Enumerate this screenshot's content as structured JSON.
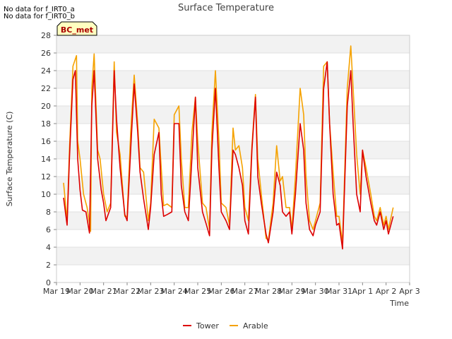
{
  "notes": [
    "No data for f_IRT0_a",
    "No data for f_IRT0_b"
  ],
  "badge": "BC_met",
  "chart_data": {
    "type": "line",
    "title": "Surface Temperature",
    "xlabel": "Time",
    "ylabel": "Surface Temperature (C)",
    "ylim": [
      0,
      28
    ],
    "yticks": [
      0,
      2,
      4,
      6,
      8,
      10,
      12,
      14,
      16,
      18,
      20,
      22,
      24,
      26,
      28
    ],
    "xticks": [
      "Mar 19",
      "Mar 20",
      "Mar 21",
      "Mar 22",
      "Mar 23",
      "Mar 24",
      "Mar 25",
      "Mar 26",
      "Mar 27",
      "Mar 28",
      "Mar 29",
      "Mar 30",
      "Mar 31",
      "Apr 1",
      "Apr 2",
      "Apr 3"
    ],
    "x_unit": "days from Mar 19",
    "grid": true,
    "legend_position": "bottom",
    "series": [
      {
        "name": "Tower",
        "color": "#dd0000",
        "x": [
          0.3,
          0.45,
          0.55,
          0.7,
          0.8,
          0.9,
          1.0,
          1.1,
          1.25,
          1.4,
          1.5,
          1.6,
          1.75,
          1.9,
          2.0,
          2.1,
          2.3,
          2.45,
          2.55,
          2.7,
          2.9,
          3.0,
          3.15,
          3.3,
          3.45,
          3.55,
          3.7,
          3.9,
          4.0,
          4.15,
          4.35,
          4.45,
          4.55,
          4.7,
          4.9,
          5.0,
          5.2,
          5.3,
          5.45,
          5.6,
          5.75,
          5.9,
          6.0,
          6.2,
          6.35,
          6.5,
          6.6,
          6.75,
          6.9,
          7.0,
          7.2,
          7.35,
          7.5,
          7.6,
          7.75,
          7.9,
          8.0,
          8.15,
          8.3,
          8.45,
          8.55,
          8.7,
          8.9,
          9.0,
          9.2,
          9.35,
          9.5,
          9.6,
          9.75,
          9.9,
          10.0,
          10.15,
          10.35,
          10.5,
          10.6,
          10.75,
          10.9,
          11.0,
          11.2,
          11.35,
          11.5,
          11.6,
          11.75,
          11.9,
          12.0,
          12.15,
          12.35,
          12.5,
          12.6,
          12.75,
          12.9,
          13.0,
          13.15,
          13.35,
          13.5,
          13.6,
          13.75,
          13.9,
          14.0,
          14.1,
          14.3
        ],
        "values": [
          9.6,
          6.5,
          14.0,
          23.0,
          24.0,
          14.0,
          10.5,
          8.2,
          8.0,
          5.6,
          20.0,
          24.0,
          14.0,
          10.5,
          9.0,
          7.0,
          8.5,
          24.0,
          18.5,
          13.0,
          7.7,
          7.0,
          15.0,
          22.5,
          17.0,
          12.5,
          9.5,
          6.0,
          8.5,
          14.5,
          17.0,
          10.0,
          7.5,
          7.7,
          8.0,
          18.0,
          18.0,
          11.0,
          8.0,
          7.0,
          14.0,
          21.0,
          13.0,
          8.0,
          6.7,
          5.3,
          15.0,
          22.0,
          13.0,
          8.0,
          7.0,
          6.0,
          15.0,
          14.5,
          13.0,
          11.0,
          7.0,
          5.5,
          15.0,
          21.0,
          12.0,
          9.0,
          5.5,
          4.5,
          8.0,
          12.5,
          11.0,
          8.0,
          7.5,
          8.0,
          5.5,
          10.0,
          18.0,
          15.0,
          9.0,
          6.0,
          5.3,
          6.5,
          8.0,
          22.0,
          25.0,
          18.0,
          10.0,
          6.5,
          6.7,
          3.8,
          20.0,
          24.0,
          18.0,
          10.0,
          8.0,
          15.0,
          12.0,
          9.0,
          7.0,
          6.5,
          8.0,
          6.0,
          7.0,
          5.5,
          7.5
        ]
      },
      {
        "name": "Arable",
        "color": "#f5a200",
        "x": [
          0.3,
          0.45,
          0.55,
          0.7,
          0.85,
          0.9,
          1.0,
          1.15,
          1.3,
          1.45,
          1.5,
          1.6,
          1.75,
          1.85,
          2.0,
          2.15,
          2.3,
          2.45,
          2.55,
          2.7,
          2.9,
          3.0,
          3.15,
          3.3,
          3.45,
          3.55,
          3.7,
          3.9,
          4.0,
          4.15,
          4.35,
          4.45,
          4.55,
          4.7,
          4.9,
          5.0,
          5.2,
          5.3,
          5.45,
          5.6,
          5.75,
          5.9,
          6.0,
          6.2,
          6.35,
          6.5,
          6.6,
          6.75,
          6.9,
          7.0,
          7.2,
          7.35,
          7.5,
          7.6,
          7.75,
          7.9,
          8.0,
          8.15,
          8.3,
          8.45,
          8.55,
          8.7,
          8.9,
          9.0,
          9.2,
          9.35,
          9.5,
          9.6,
          9.75,
          9.9,
          10.0,
          10.15,
          10.35,
          10.5,
          10.6,
          10.75,
          10.9,
          11.0,
          11.2,
          11.35,
          11.5,
          11.6,
          11.75,
          11.9,
          12.0,
          12.15,
          12.35,
          12.5,
          12.6,
          12.75,
          12.9,
          13.0,
          13.15,
          13.35,
          13.5,
          13.6,
          13.75,
          13.9,
          14.0,
          14.1,
          14.3
        ],
        "values": [
          11.3,
          7.0,
          15.0,
          24.5,
          25.7,
          16.0,
          14.0,
          10.0,
          8.5,
          5.8,
          22.0,
          25.9,
          15.0,
          14.0,
          10.0,
          8.0,
          9.0,
          25.0,
          17.0,
          14.5,
          7.5,
          7.5,
          17.0,
          23.5,
          18.0,
          13.0,
          12.5,
          7.0,
          9.0,
          18.5,
          17.5,
          13.0,
          8.7,
          8.9,
          8.5,
          19.0,
          20.0,
          14.0,
          8.5,
          8.5,
          17.0,
          21.0,
          16.0,
          9.0,
          8.5,
          6.0,
          17.0,
          24.0,
          16.0,
          9.0,
          8.5,
          6.5,
          17.5,
          15.0,
          15.5,
          13.0,
          8.5,
          7.0,
          15.5,
          21.3,
          14.0,
          10.0,
          5.0,
          4.8,
          9.0,
          15.5,
          11.5,
          12.0,
          8.5,
          8.5,
          6.0,
          12.0,
          22.0,
          19.0,
          12.0,
          7.0,
          6.0,
          7.0,
          9.0,
          24.5,
          25.0,
          18.0,
          12.5,
          7.5,
          7.5,
          4.5,
          22.0,
          26.8,
          22.0,
          14.5,
          10.0,
          15.0,
          13.0,
          10.0,
          7.5,
          7.0,
          8.5,
          6.5,
          7.5,
          6.0,
          8.5
        ]
      }
    ]
  }
}
